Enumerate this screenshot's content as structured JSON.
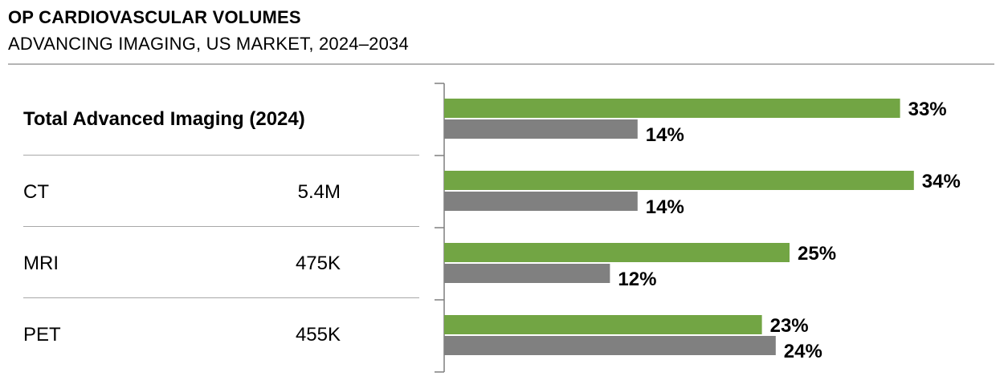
{
  "header": {
    "title": "OP CARDIOVASCULAR VOLUMES",
    "subtitle": "ADVANCING IMAGING, US MARKET, 2024–2034"
  },
  "table": {
    "header": "Total Advanced Imaging (2024)",
    "rows": [
      {
        "label": "CT",
        "value": "5.4M"
      },
      {
        "label": "MRI",
        "value": "475K"
      },
      {
        "label": "PET",
        "value": "455K"
      }
    ]
  },
  "colors": {
    "series_green": "#72a544",
    "series_gray": "#808080",
    "axis": "#7f7f7f"
  },
  "chart_data": {
    "type": "bar",
    "orientation": "horizontal",
    "categories": [
      "Total Advanced Imaging",
      "CT",
      "MRI",
      "PET"
    ],
    "series": [
      {
        "name": "green series",
        "values": [
          33,
          34,
          25,
          23
        ],
        "labels": [
          "33%",
          "34%",
          "25%",
          "23%"
        ]
      },
      {
        "name": "gray series",
        "values": [
          14,
          14,
          12,
          24
        ],
        "labels": [
          "14%",
          "14%",
          "12%",
          "24%"
        ]
      }
    ],
    "xlim": [
      0,
      40
    ],
    "title": "",
    "xlabel": "",
    "ylabel": "",
    "grid": false,
    "legend": "none"
  }
}
